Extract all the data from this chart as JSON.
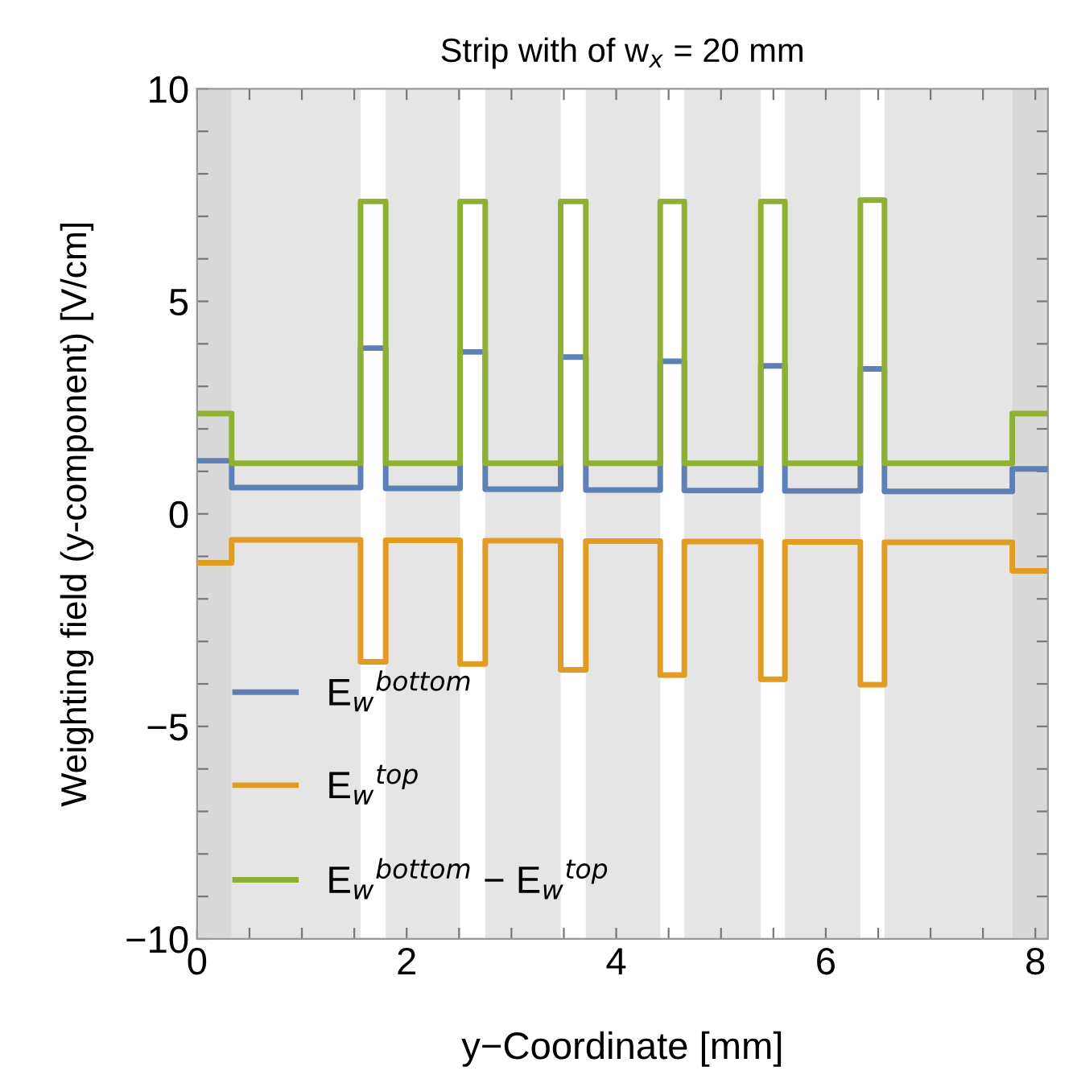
{
  "chart_data": {
    "type": "step",
    "title": "Strip with of w$_{x}$ = 20 mm",
    "xlabel": "y−Coordinate [mm]",
    "ylabel": "Weighting field (y-component) [V/cm]",
    "x": [
      0,
      0.33,
      1.56,
      1.8,
      2.51,
      2.75,
      3.47,
      3.71,
      4.42,
      4.65,
      5.38,
      5.61,
      6.33,
      6.56,
      7.78,
      8.12
    ],
    "series": [
      {
        "name": "E$_{w}$$^{bottom}$",
        "color": "#5e81b5",
        "values": [
          1.25,
          0.62,
          3.9,
          0.6,
          3.81,
          0.58,
          3.69,
          0.56,
          3.59,
          0.55,
          3.48,
          0.54,
          3.41,
          0.53,
          1.06,
          1.06
        ]
      },
      {
        "name": "E$_{w}$$^{top}$",
        "color": "#e19c24",
        "values": [
          -1.15,
          -0.61,
          -3.48,
          -0.62,
          -3.53,
          -0.63,
          -3.67,
          -0.64,
          -3.79,
          -0.65,
          -3.89,
          -0.66,
          -4.02,
          -0.67,
          -1.34,
          -1.34
        ]
      },
      {
        "name": "E$_{w}$$^{bottom}$ − E$_{w}$$^{top}$",
        "color": "#8fb032",
        "values": [
          2.36,
          1.19,
          7.35,
          1.19,
          7.35,
          1.19,
          7.35,
          1.19,
          7.35,
          1.19,
          7.35,
          1.19,
          7.38,
          1.19,
          2.36,
          2.36
        ]
      }
    ],
    "bands": [
      {
        "axis": "x",
        "from": 0,
        "to": 0.33,
        "color": "#d9d9d9"
      },
      {
        "axis": "x",
        "from": 0.33,
        "to": 1.56,
        "color": "#e5e5e5"
      },
      {
        "axis": "x",
        "from": 1.8,
        "to": 2.51,
        "color": "#e5e5e5"
      },
      {
        "axis": "x",
        "from": 2.75,
        "to": 3.47,
        "color": "#e5e5e5"
      },
      {
        "axis": "x",
        "from": 3.71,
        "to": 4.42,
        "color": "#e5e5e5"
      },
      {
        "axis": "x",
        "from": 4.65,
        "to": 5.38,
        "color": "#e5e5e5"
      },
      {
        "axis": "x",
        "from": 5.61,
        "to": 6.33,
        "color": "#e5e5e5"
      },
      {
        "axis": "x",
        "from": 6.56,
        "to": 7.78,
        "color": "#e5e5e5"
      },
      {
        "axis": "x",
        "from": 7.78,
        "to": 8.12,
        "color": "#d9d9d9"
      }
    ],
    "xlim": [
      0,
      8.12
    ],
    "ylim": [
      -10,
      10
    ],
    "xticks": [
      0,
      {
        "value": 0.5,
        "label": null
      },
      {
        "value": 1,
        "label": null
      },
      {
        "value": 1.5,
        "label": null
      },
      2,
      {
        "value": 2.5,
        "label": null
      },
      {
        "value": 3,
        "label": null
      },
      {
        "value": 3.5,
        "label": null
      },
      4,
      {
        "value": 4.5,
        "label": null
      },
      {
        "value": 5,
        "label": null
      },
      {
        "value": 5.5,
        "label": null
      },
      6,
      {
        "value": 6.5,
        "label": null
      },
      {
        "value": 7,
        "label": null
      },
      {
        "value": 7.5,
        "label": null
      },
      8
    ],
    "yticks": [
      -10,
      {
        "value": -9,
        "label": null
      },
      {
        "value": -8,
        "label": null
      },
      {
        "value": -7,
        "label": null
      },
      {
        "value": -6,
        "label": null
      },
      -5,
      {
        "value": -4,
        "label": null
      },
      {
        "value": -3,
        "label": null
      },
      {
        "value": -2,
        "label": null
      },
      {
        "value": -1,
        "label": null
      },
      0,
      {
        "value": 1,
        "label": null
      },
      {
        "value": 2,
        "label": null
      },
      {
        "value": 3,
        "label": null
      },
      {
        "value": 4,
        "label": null
      },
      5,
      {
        "value": 6,
        "label": null
      },
      {
        "value": 7,
        "label": null
      },
      {
        "value": 8,
        "label": null
      },
      {
        "value": 9,
        "label": null
      },
      10
    ],
    "grid": false,
    "legend": "bottom left",
    "line_style": "solid",
    "marker": "none"
  }
}
